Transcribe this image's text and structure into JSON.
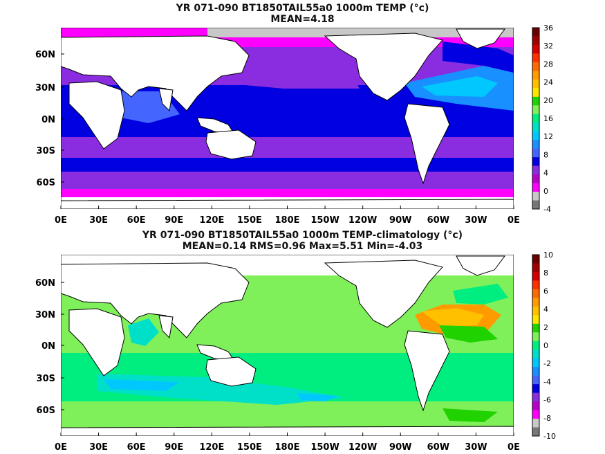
{
  "panels": [
    {
      "title_line1": "YR 071-090 BT1850TAIL55a0 1000m TEMP (°c)",
      "title_line2": "MEAN=4.18",
      "lat_labels": [
        "60N",
        "30N",
        "0N",
        "30S",
        "60S"
      ],
      "lon_labels": [
        "0E",
        "30E",
        "60E",
        "90E",
        "120E",
        "150E",
        "180E",
        "150W",
        "120W",
        "90W",
        "60W",
        "30W",
        "0E"
      ],
      "colorbar": {
        "labels": [
          "36",
          "32",
          "28",
          "24",
          "20",
          "16",
          "12",
          "8",
          "4",
          "0",
          "-4"
        ],
        "colors": [
          "#6b0000",
          "#a00000",
          "#d40000",
          "#ff3000",
          "#ff6a00",
          "#ff9a00",
          "#ffc000",
          "#ffe600",
          "#1fd200",
          "#80f05a",
          "#00ee80",
          "#00e0c8",
          "#00c8ff",
          "#1890ff",
          "#4466ff",
          "#0000e0",
          "#8a2ce0",
          "#b800c8",
          "#ff00ff",
          "#c8c8c8",
          "#777777"
        ]
      }
    },
    {
      "title_line1": "YR 071-090 BT1850TAIL55a0 1000m TEMP-climatology (°c)",
      "title_line2": "MEAN=0.14   RMS=0.96   Max=5.51   Min=-4.03",
      "lat_labels": [
        "60N",
        "30N",
        "0N",
        "30S",
        "60S"
      ],
      "lon_labels": [
        "0E",
        "30E",
        "60E",
        "90E",
        "120E",
        "150E",
        "180E",
        "150W",
        "120W",
        "90W",
        "60W",
        "30W",
        "0E"
      ],
      "colorbar": {
        "labels": [
          "10",
          "8",
          "6",
          "4",
          "2",
          "0",
          "-2",
          "-4",
          "-6",
          "-8",
          "-10"
        ],
        "colors": [
          "#6b0000",
          "#a00000",
          "#d40000",
          "#ff3000",
          "#ff6a00",
          "#ff9a00",
          "#ffc000",
          "#ffe600",
          "#1fd200",
          "#80f05a",
          "#00ee80",
          "#00e0c8",
          "#00c8ff",
          "#1890ff",
          "#4466ff",
          "#0000e0",
          "#8a2ce0",
          "#b800c8",
          "#ff00ff",
          "#c8c8c8",
          "#777777"
        ]
      }
    }
  ]
}
